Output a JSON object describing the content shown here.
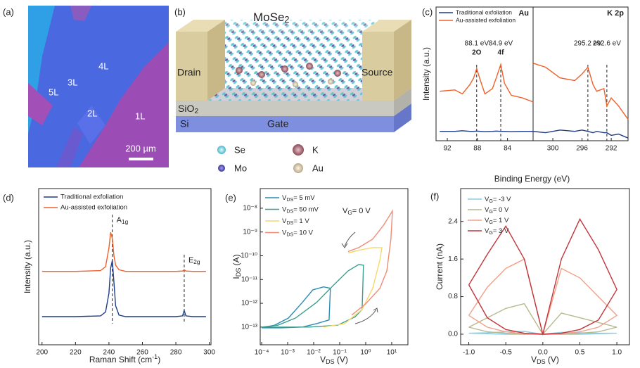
{
  "panel_a": {
    "label": "(a)",
    "layers": [
      "4L",
      "3L",
      "5L",
      "2L",
      "1L"
    ],
    "scale_bar": "200 µm"
  },
  "panel_b": {
    "label": "(b)",
    "material": {
      "text": "MoSe",
      "sub": "2"
    },
    "drain": "Drain",
    "source": "Source",
    "dielectric": {
      "text": "SiO",
      "sub": "2"
    },
    "substrate": "Si",
    "gate": "Gate",
    "legend": [
      "Se",
      "K",
      "Mo",
      "Au"
    ]
  },
  "chart_data": [
    {
      "type": "line",
      "panel": "(c)",
      "xlabel": "Binding Energy (eV)",
      "ylabel": "Intensity (a.u.)",
      "ylim": [
        0,
        10
      ],
      "legend": "upper left",
      "series": [
        {
          "name": "Traditional exfoliation",
          "color": "#1f3c88"
        },
        {
          "name": "Au-assisted exfoliation",
          "color": "#f0602a"
        }
      ],
      "subplots": [
        {
          "title": "Au",
          "xlim": [
            93.5,
            80.6
          ],
          "xticks": [
            92,
            88,
            84
          ],
          "x": [
            93,
            91,
            90,
            89,
            88.5,
            88.1,
            87.6,
            87,
            86,
            85.5,
            84.9,
            84.4,
            83.5,
            82,
            80.6
          ],
          "values": [
            [
              0.7,
              0.7,
              0.75,
              0.7,
              0.7,
              0.72,
              0.7,
              0.68,
              0.7,
              0.72,
              0.7,
              0.7,
              0.68,
              0.7,
              0.7
            ],
            [
              3.7,
              3.8,
              3.5,
              4.2,
              4.7,
              5.4,
              4.5,
              3.5,
              3.9,
              4.7,
              5.7,
              4.3,
              3.4,
              3.2,
              2.9
            ]
          ],
          "annotations": [
            {
              "value": 88.1,
              "label": "88.1 eV",
              "note": "2O"
            },
            {
              "value": 84.9,
              "label": "84.9 eV",
              "note": "4f"
            }
          ]
        },
        {
          "title": "K 2p",
          "xlim": [
            302.7,
            289.7
          ],
          "xticks": [
            300,
            296,
            292
          ],
          "x": [
            302.7,
            301,
            299,
            297,
            296,
            295.2,
            294.5,
            294,
            293,
            292.6,
            292,
            291,
            289.7
          ],
          "values": [
            [
              0.7,
              0.6,
              0.8,
              0.7,
              0.8,
              0.7,
              0.6,
              0.7,
              0.6,
              0.6,
              0.4,
              0.5,
              0.2
            ],
            [
              5.8,
              5.5,
              4.7,
              4.5,
              5,
              5.5,
              4.2,
              3.7,
              3.9,
              2.6,
              3.2,
              2.6,
              1.6
            ]
          ],
          "annotations": [
            {
              "value": 295.2,
              "label": "295.2 eV"
            },
            {
              "value": 292.6,
              "label": "292.6 eV"
            }
          ]
        }
      ]
    },
    {
      "type": "line",
      "panel": "(d)",
      "xlabel": {
        "text": "Raman Shift (cm",
        "sup": "-1",
        "after": ")"
      },
      "ylabel": "Intensity (a.u.)",
      "xlim": [
        198,
        301
      ],
      "ylim": [
        0,
        10
      ],
      "xticks": [
        200,
        220,
        240,
        260,
        280,
        300
      ],
      "legend": "upper left",
      "x": [
        200,
        220,
        235,
        238,
        240,
        241,
        242,
        243,
        244,
        246,
        250,
        260,
        280,
        284,
        285,
        286,
        290,
        298
      ],
      "series": [
        {
          "name": "Traditional exfoliation",
          "color": "#1f3c88",
          "values": [
            1.8,
            1.8,
            1.85,
            2.1,
            3.3,
            4.9,
            5.4,
            4.0,
            2.5,
            1.9,
            1.8,
            1.8,
            1.8,
            1.85,
            2.2,
            1.85,
            1.8,
            1.8
          ]
        },
        {
          "name": "Au-assisted exfoliation",
          "color": "#f0602a",
          "values": [
            4.7,
            4.7,
            4.75,
            5.0,
            6.2,
            7.2,
            6.8,
            5.7,
            5.1,
            4.8,
            4.7,
            4.7,
            4.7,
            4.72,
            4.8,
            4.72,
            4.7,
            4.7
          ]
        }
      ],
      "peaks": [
        {
          "x": 242,
          "label": {
            "text": "A",
            "sub": "1g"
          }
        },
        {
          "x": 285,
          "label": {
            "text": "E",
            "sub": "2g"
          }
        }
      ]
    },
    {
      "type": "line",
      "panel": "(e)",
      "xlabel": {
        "text": "V",
        "sub": "DS",
        "after": " (V)"
      },
      "ylabel": {
        "text": "I",
        "sub": "DS",
        "after": " (A)"
      },
      "xscale": "log",
      "yscale": "log",
      "xlim": [
        8.8e-05,
        42
      ],
      "ylim": [
        1.8e-14,
        6.7e-08
      ],
      "legend": "upper left",
      "xticks": [
        {
          "value": 0.0001,
          "label": "10⁻⁴"
        },
        {
          "value": 0.001,
          "label": "10⁻³"
        },
        {
          "value": 0.01,
          "label": "10⁻²"
        },
        {
          "value": 0.1,
          "label": "10⁻¹"
        },
        {
          "value": 1,
          "label": "10⁰"
        },
        {
          "value": 10,
          "label": "10¹"
        }
      ],
      "yticks": [
        {
          "value": 1e-13,
          "label": "10⁻¹³"
        },
        {
          "value": 1e-12,
          "label": "10⁻¹²"
        },
        {
          "value": 1e-11,
          "label": "10⁻¹¹"
        },
        {
          "value": 1e-10,
          "label": "10⁻¹⁰"
        },
        {
          "value": 1e-09,
          "label": "10⁻⁹"
        },
        {
          "value": 1e-08,
          "label": "10⁻⁸"
        }
      ],
      "annotation": {
        "text": "V",
        "sub": "G",
        "after": "= 0 V"
      },
      "series": [
        {
          "name": {
            "text": "V",
            "sub": "DS",
            "after": "= 5 mV"
          },
          "color": "#2b8cb5",
          "x": [
            0.0001,
            0.00057,
            0.0037,
            0.013,
            0.039,
            0.044,
            0.024,
            0.0093,
            0.0037,
            0.00107,
            0.00031,
            0.0001
          ],
          "values": [
            9.3e-14,
            9.3e-14,
            1e-13,
            1.4e-13,
            2e-13,
            4.3e-12,
            4.9e-12,
            3.7e-12,
            1.1e-12,
            2.4e-13,
            1.2e-13,
            9.3e-14
          ]
        },
        {
          "name": {
            "text": "V",
            "sub": "DS",
            "after": "= 50 mV"
          },
          "color": "#3c9e8f",
          "x": [
            0.0001,
            0.0069,
            0.083,
            0.39,
            0.73,
            0.82,
            0.54,
            0.21,
            0.06,
            0.013,
            0.002,
            0.00042,
            0.0001
          ],
          "values": [
            1e-13,
            1e-13,
            1.2e-13,
            2.7e-13,
            5.5e-13,
            4e-11,
            4.3e-11,
            2.3e-11,
            6e-12,
            1.1e-12,
            2.4e-13,
            1.2e-13,
            1e-13
          ]
        },
        {
          "name": {
            "text": "V",
            "sub": "DS",
            "after": "= 1 V"
          },
          "color": "#f6d86b",
          "x": [
            0.024,
            0.155,
            0.73,
            1.86,
            3.5,
            4.2,
            1.86,
            0.54,
            0.21
          ],
          "values": [
            1e-13,
            1.4e-13,
            5.5e-13,
            4.3e-12,
            6.5e-11,
            2.2e-10,
            2.2e-10,
            1.7e-10,
            1.3e-10
          ]
        },
        {
          "name": {
            "text": "V",
            "sub": "DS",
            "after": "= 10 V"
          },
          "color": "#f08c74",
          "x": [
            0.29,
            1,
            3.5,
            6.5,
            9.3,
            10.7,
            4.8,
            1.86,
            0.54,
            0.21
          ],
          "values": [
            3.2e-13,
            9.5e-13,
            4.3e-12,
            2.3e-11,
            5e-10,
            7.6e-09,
            1.9e-09,
            5e-10,
            2.2e-10,
            1.5e-10
          ]
        }
      ]
    },
    {
      "type": "line",
      "panel": "(f)",
      "xlabel": {
        "text": "V",
        "sub": "DS",
        "after": " (V)"
      },
      "ylabel": "Current (nA)",
      "xlim": [
        -1.11,
        1.17
      ],
      "ylim": [
        -0.225,
        3.1
      ],
      "legend": "upper left",
      "xticks": [
        {
          "value": -1,
          "label": "-1.0"
        },
        {
          "value": -0.5,
          "label": "-0.5"
        },
        {
          "value": 0,
          "label": "0.0"
        },
        {
          "value": 0.5,
          "label": "0.5"
        },
        {
          "value": 1,
          "label": "1.0"
        }
      ],
      "yticks": [
        {
          "value": 0,
          "label": "0.0"
        },
        0.8,
        1.6,
        2.4
      ],
      "x": [
        -1,
        -0.75,
        -0.5,
        -0.25,
        0,
        0.25,
        0.5,
        0.75,
        1,
        0.75,
        0.5,
        0.25,
        0,
        -0.25,
        -0.5,
        -0.75,
        -1
      ],
      "series": [
        {
          "name": {
            "text": "V",
            "sub": "G",
            "after": "= -3 V"
          },
          "color": "#8fcbe2",
          "values": [
            0.02,
            0.03,
            0.05,
            0.06,
            0,
            0.04,
            0.03,
            0.02,
            0.02,
            0.01,
            0,
            0,
            0,
            0,
            0,
            0.01,
            0.02
          ]
        },
        {
          "name": {
            "text": "V",
            "sub": "G",
            "after": "= 0 V"
          },
          "color": "#b8b98f",
          "values": [
            0.15,
            0.35,
            0.55,
            0.65,
            0,
            0.45,
            0.35,
            0.25,
            0.15,
            0.05,
            0.02,
            0,
            0,
            0,
            0.02,
            0.05,
            0.15
          ]
        },
        {
          "name": {
            "text": "V",
            "sub": "G",
            "after": "= 1 V"
          },
          "color": "#f2a088",
          "values": [
            0.4,
            1.0,
            1.4,
            1.6,
            0,
            1.4,
            1.2,
            0.8,
            0.4,
            0.15,
            0.05,
            0.01,
            0,
            0.01,
            0.05,
            0.15,
            0.4
          ]
        },
        {
          "name": {
            "text": "V",
            "sub": "G",
            "after": "= 3 V"
          },
          "color": "#c0353a",
          "values": [
            1.05,
            1.7,
            2.3,
            1.6,
            0,
            1.6,
            2.45,
            1.8,
            0.95,
            0.3,
            0.1,
            0.02,
            0,
            0.02,
            0.1,
            0.35,
            1.05
          ]
        }
      ]
    }
  ]
}
